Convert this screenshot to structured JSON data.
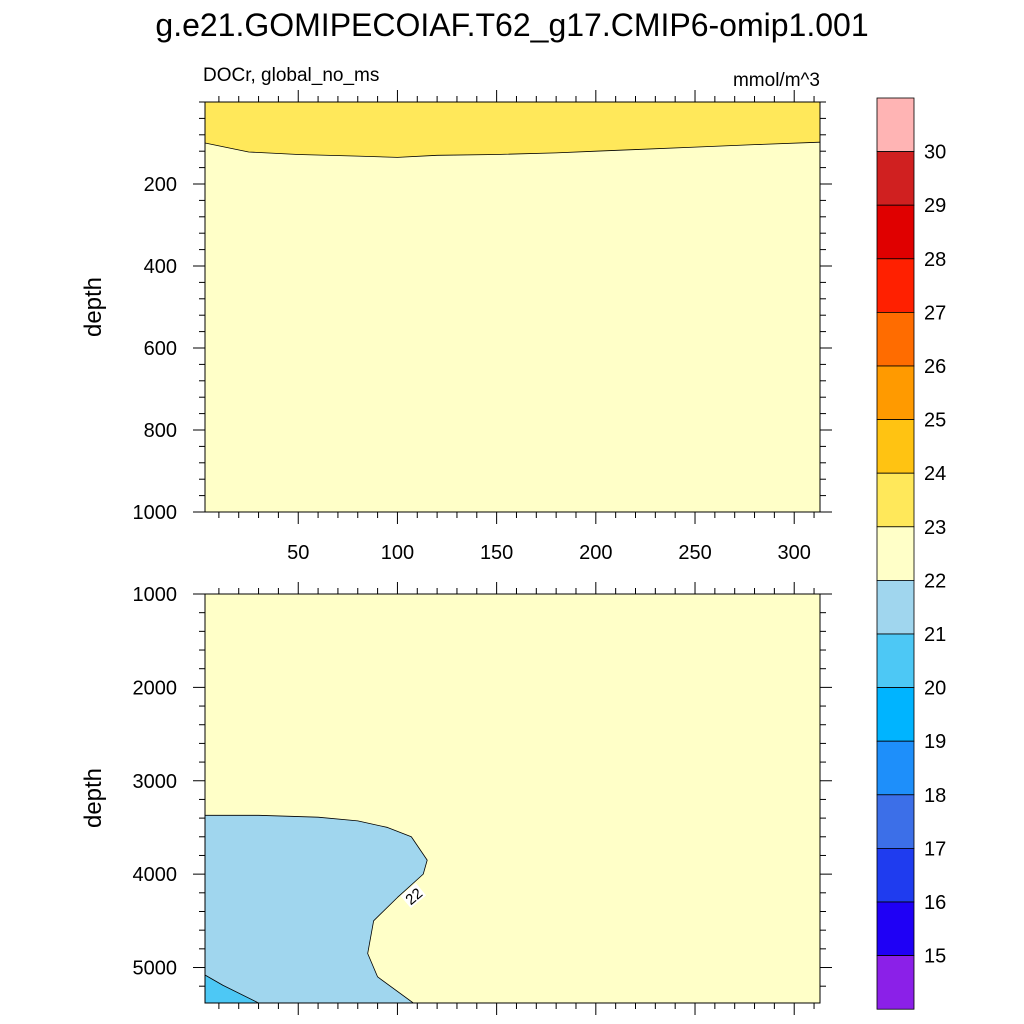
{
  "chart_data": {
    "type": "heatmap",
    "title": "g.e21.GOMIPECOIAF.T62_g17.CMIP6-omip1.001",
    "variable_label": "DOCr, global_no_ms",
    "units": "mmol/m^3",
    "ylabel": "depth",
    "x_ticks": [
      "50",
      "100",
      "150",
      "200",
      "250",
      "300"
    ],
    "x_tick_values": [
      50,
      100,
      150,
      200,
      250,
      300
    ],
    "xlim": [
      3,
      313
    ],
    "panels": [
      {
        "name": "upper",
        "ylim": [
          0,
          1000
        ],
        "y_ticks": [
          "200",
          "400",
          "600",
          "800",
          "1000"
        ],
        "y_tick_values": [
          200,
          400,
          600,
          800,
          1000
        ],
        "regions": [
          {
            "level": "23-24",
            "boundary_x": [
              3,
              25,
              50,
              80,
              100,
              120,
              150,
              180,
              200,
              220,
              250,
              280,
              313
            ],
            "boundary_depth": [
              100,
              122,
              128,
              132,
              135,
              130,
              128,
              124,
              120,
              116,
              110,
              104,
              98
            ]
          },
          {
            "level": "22-23",
            "fill": "below boundary"
          }
        ]
      },
      {
        "name": "lower",
        "ylim": [
          1000,
          5380
        ],
        "y_ticks": [
          "1000",
          "2000",
          "3000",
          "4000",
          "5000"
        ],
        "y_tick_values": [
          1000,
          2000,
          3000,
          4000,
          5000
        ],
        "regions": [
          {
            "level": "22-23",
            "fill": "background"
          },
          {
            "level": "21-22",
            "outline_x": [
              3,
              30,
              60,
              80,
              95,
              107,
              115,
              113,
              100,
              88,
              85,
              90,
              108,
              3
            ],
            "outline_depth": [
              3370,
              3370,
              3390,
              3430,
              3500,
              3600,
              3850,
              4000,
              4250,
              4500,
              4850,
              5100,
              5380,
              5380
            ]
          },
          {
            "level": "20-21",
            "outline_x": [
              3,
              12,
              30,
              3
            ],
            "outline_depth": [
              5080,
              5190,
              5380,
              5380
            ]
          }
        ],
        "contour_labels": [
          {
            "text": "22",
            "x": 108,
            "depth": 4230
          }
        ]
      }
    ],
    "colorbar": {
      "labels": [
        "15",
        "16",
        "17",
        "18",
        "19",
        "20",
        "21",
        "22",
        "23",
        "24",
        "25",
        "26",
        "27",
        "28",
        "29",
        "30"
      ],
      "colors": [
        "#8b20e8",
        "#1f00f5",
        "#1f3cef",
        "#3c6fe8",
        "#1e8ffa",
        "#00b4ff",
        "#4dc8f5",
        "#a0d6ee",
        "#ffffc8",
        "#ffe85a",
        "#ffc312",
        "#ff9a00",
        "#ff6c00",
        "#ff2000",
        "#e00000",
        "#d02020",
        "#ffb4b4"
      ]
    }
  }
}
